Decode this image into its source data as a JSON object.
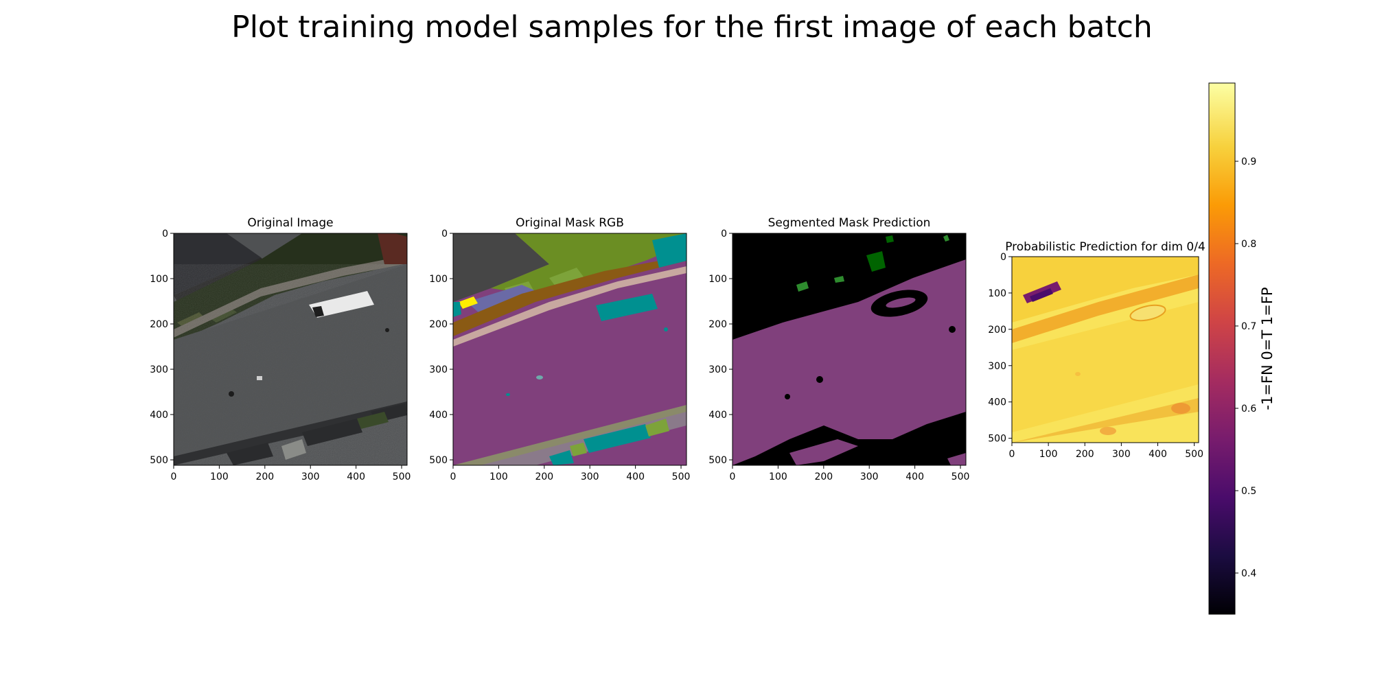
{
  "figure": {
    "title": "Plot training model samples for the first image of each batch"
  },
  "chart_data": [
    {
      "type": "image",
      "title": "Original Image",
      "xticks": [
        0,
        100,
        200,
        300,
        400,
        500
      ],
      "yticks": [
        0,
        100,
        200,
        300,
        400,
        500
      ],
      "xlim": [
        0,
        512
      ],
      "ylim": [
        512,
        0
      ]
    },
    {
      "type": "image",
      "title": "Original Mask RGB",
      "xticks": [
        0,
        100,
        200,
        300,
        400,
        500
      ],
      "yticks": [
        0,
        100,
        200,
        300,
        400,
        500
      ],
      "xlim": [
        0,
        512
      ],
      "ylim": [
        512,
        0
      ]
    },
    {
      "type": "image",
      "title": "Segmented Mask Prediction",
      "xticks": [
        0,
        100,
        200,
        300,
        400,
        500
      ],
      "yticks": [
        0,
        100,
        200,
        300,
        400,
        500
      ],
      "xlim": [
        0,
        512
      ],
      "ylim": [
        512,
        0
      ]
    },
    {
      "type": "heatmap",
      "title": "Probabilistic Prediction for dim 0/4",
      "colormap": "inferno",
      "xticks": [
        0,
        100,
        200,
        300,
        400,
        500
      ],
      "yticks": [
        0,
        100,
        200,
        300,
        400,
        500
      ],
      "xlim": [
        0,
        512
      ],
      "ylim": [
        512,
        0
      ]
    }
  ],
  "colorbar": {
    "label": "-1=FN 0=T 1=FP",
    "ticks": [
      0.4,
      0.5,
      0.6,
      0.7,
      0.8,
      0.9
    ],
    "range": [
      0.35,
      0.995
    ],
    "colormap": "inferno"
  },
  "colors": {
    "inferno": [
      "#000004",
      "#1b0c41",
      "#4a0c6b",
      "#781c6d",
      "#a52c60",
      "#cf4446",
      "#ed6925",
      "#fb9b06",
      "#f7d13d",
      "#fcffa4"
    ],
    "mask_road": "#80407c",
    "mask_vegetation": "#6b8e23",
    "mask_car": "#009090",
    "mask_roof": "#464646",
    "mask_ground": "#8a5a14"
  }
}
